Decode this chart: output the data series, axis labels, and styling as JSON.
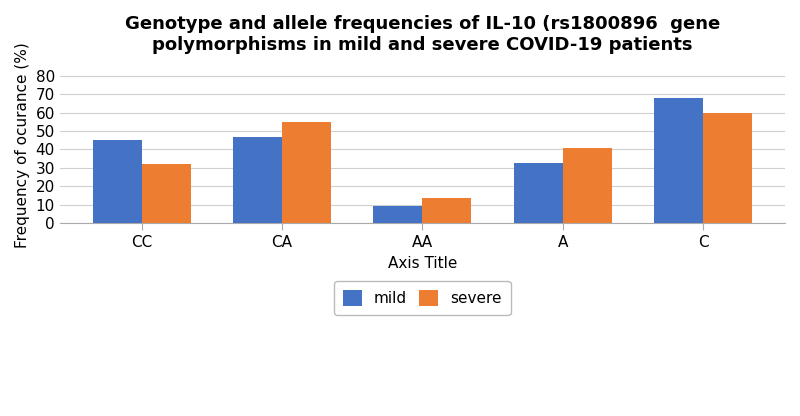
{
  "title": "Genotype and allele frequencies of IL-10 (rs1800896  gene\npolymorphisms in mild and severe COVID-19 patients",
  "xlabel": "Axis Title",
  "ylabel": "Frequency of ocurance (%)",
  "categories": [
    "CC",
    "CA",
    "AA",
    "A",
    "C"
  ],
  "mild_values": [
    45,
    46.5,
    9.5,
    32.5,
    68
  ],
  "severe_values": [
    32,
    55,
    13.5,
    41,
    60
  ],
  "mild_color": "#4472C4",
  "severe_color": "#ED7D31",
  "ylim": [
    0,
    85
  ],
  "yticks": [
    0,
    10,
    20,
    30,
    40,
    50,
    60,
    70,
    80
  ],
  "bar_width": 0.35,
  "legend_labels": [
    "mild",
    "severe"
  ],
  "background_color": "#ffffff",
  "grid_color": "#d0d0d0",
  "title_fontsize": 13,
  "axis_label_fontsize": 11,
  "tick_fontsize": 11,
  "legend_fontsize": 11
}
